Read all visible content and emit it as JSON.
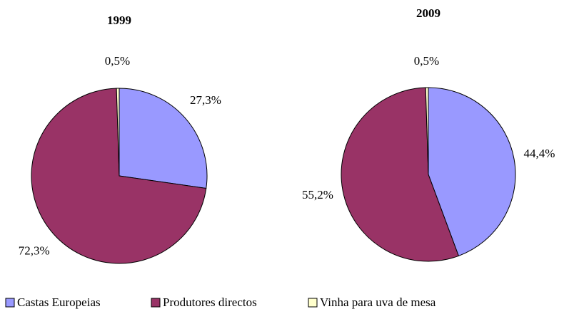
{
  "chart_data": [
    {
      "type": "pie",
      "title": "1999",
      "categories": [
        "Castas Europeias",
        "Produtores directos",
        "Vinha para uva de mesa"
      ],
      "values": [
        27.3,
        72.3,
        0.5
      ],
      "value_labels": [
        "27,3%",
        "72,3%",
        "0,5%"
      ],
      "colors": [
        "#9999ff",
        "#993366",
        "#ffffcc"
      ]
    },
    {
      "type": "pie",
      "title": "2009",
      "categories": [
        "Castas Europeias",
        "Produtores directos",
        "Vinha para uva de mesa"
      ],
      "values": [
        44.4,
        55.2,
        0.5
      ],
      "value_labels": [
        "44,4%",
        "55,2%",
        "0,5%"
      ],
      "colors": [
        "#9999ff",
        "#993366",
        "#ffffcc"
      ]
    }
  ]
}
